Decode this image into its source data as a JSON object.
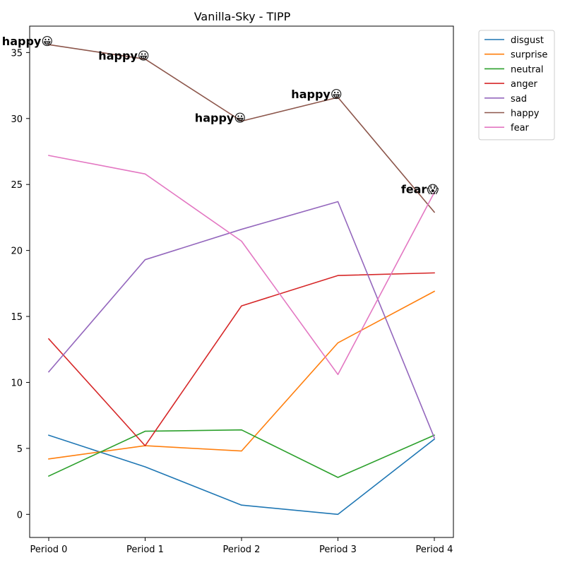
{
  "chart_data": {
    "type": "line",
    "title": "Vanilla-Sky - TIPP",
    "xlabel": "",
    "ylabel": "",
    "categories": [
      "Period 0",
      "Period 1",
      "Period 2",
      "Period 3",
      "Period 4"
    ],
    "ylim": [
      -1.75,
      37.0
    ],
    "yticks": [
      0,
      5,
      10,
      15,
      20,
      25,
      30,
      35
    ],
    "grid": false,
    "legend_position": "outside-top-right",
    "series": [
      {
        "name": "disgust",
        "color": "#1f77b4",
        "values": [
          6.0,
          3.6,
          0.7,
          0.0,
          5.7
        ]
      },
      {
        "name": "surprise",
        "color": "#ff7f0e",
        "values": [
          4.2,
          5.2,
          4.8,
          13.0,
          16.9
        ]
      },
      {
        "name": "neutral",
        "color": "#2ca02c",
        "values": [
          2.9,
          6.3,
          6.4,
          2.8,
          6.0
        ]
      },
      {
        "name": "anger",
        "color": "#d62728",
        "values": [
          13.3,
          5.2,
          15.8,
          18.1,
          18.3
        ]
      },
      {
        "name": "sad",
        "color": "#9467bd",
        "values": [
          10.8,
          19.3,
          21.6,
          23.7,
          5.8
        ]
      },
      {
        "name": "happy",
        "color": "#8c564b",
        "values": [
          35.6,
          34.5,
          29.8,
          31.6,
          22.9
        ]
      },
      {
        "name": "fear",
        "color": "#e377c2",
        "values": [
          27.2,
          25.8,
          20.7,
          10.6,
          24.4
        ]
      }
    ],
    "annotations": [
      {
        "text": "happy😀",
        "x": "Period 0"
      },
      {
        "text": "happy😀",
        "x": "Period 1"
      },
      {
        "text": "happy😀",
        "x": "Period 2"
      },
      {
        "text": "happy😀",
        "x": "Period 3"
      },
      {
        "text": "fear😱",
        "x": "Period 4"
      }
    ]
  }
}
